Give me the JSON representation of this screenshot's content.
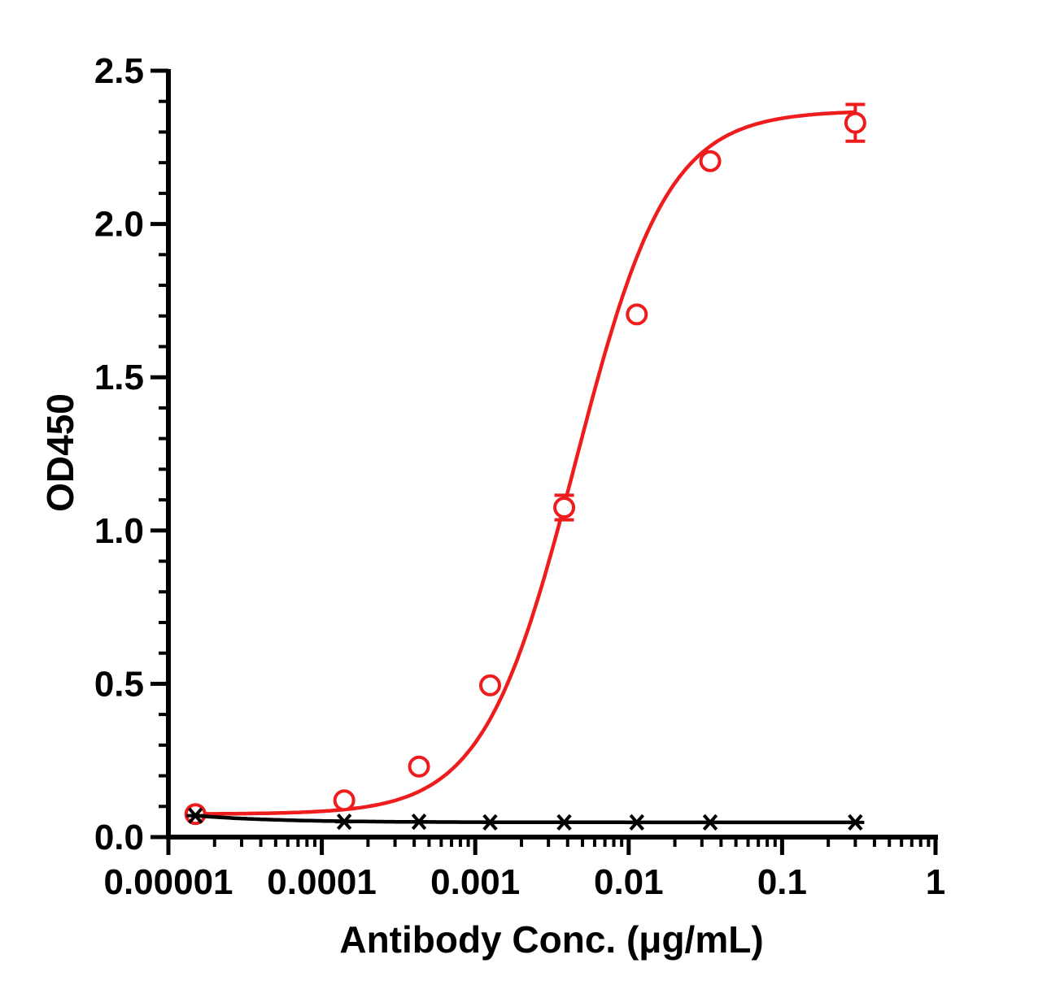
{
  "chart_data": {
    "type": "scatter",
    "xlabel": "Antibody Conc. (μg/mL)",
    "ylabel": "OD450",
    "xscale": "log",
    "xlim": [
      1e-05,
      1
    ],
    "ylim": [
      0,
      2.5
    ],
    "x_ticks": [
      1e-05,
      0.0001,
      0.001,
      0.01,
      0.1,
      1
    ],
    "x_tick_labels": [
      "0.00001",
      "0.0001",
      "0.001",
      "0.01",
      "0.1",
      "1"
    ],
    "y_ticks": [
      0,
      0.5,
      1,
      1.5,
      2,
      2.5
    ],
    "y_tick_labels": [
      "0.0",
      "0.5",
      "1.0",
      "1.5",
      "2.0",
      "2.5"
    ],
    "grid": false,
    "series": [
      {
        "marker": "open-circle",
        "color": "#ee1c1c",
        "x": [
          1.5e-05,
          0.00014,
          0.00043,
          0.00125,
          0.0038,
          0.0113,
          0.034,
          0.3
        ],
        "y": [
          0.075,
          0.12,
          0.23,
          0.495,
          1.075,
          1.705,
          2.205,
          2.33
        ],
        "error": [
          0,
          0,
          0,
          0,
          0.04,
          0,
          0,
          0.06
        ],
        "fit": {
          "model": "4PL",
          "bottom": 0.075,
          "top": 2.37,
          "ec50": 0.0045,
          "hill": 1.45
        }
      },
      {
        "marker": "asterisk",
        "color": "#000000",
        "x": [
          1.5e-05,
          0.00014,
          0.00043,
          0.00125,
          0.0038,
          0.0113,
          0.034,
          0.3
        ],
        "y": [
          0.07,
          0.05,
          0.05,
          0.048,
          0.048,
          0.048,
          0.048,
          0.048
        ],
        "error": [
          0,
          0,
          0,
          0,
          0,
          0,
          0,
          0
        ],
        "fit": {
          "model": "smooth",
          "bottom": 0.048,
          "top": 0.07
        }
      }
    ]
  }
}
